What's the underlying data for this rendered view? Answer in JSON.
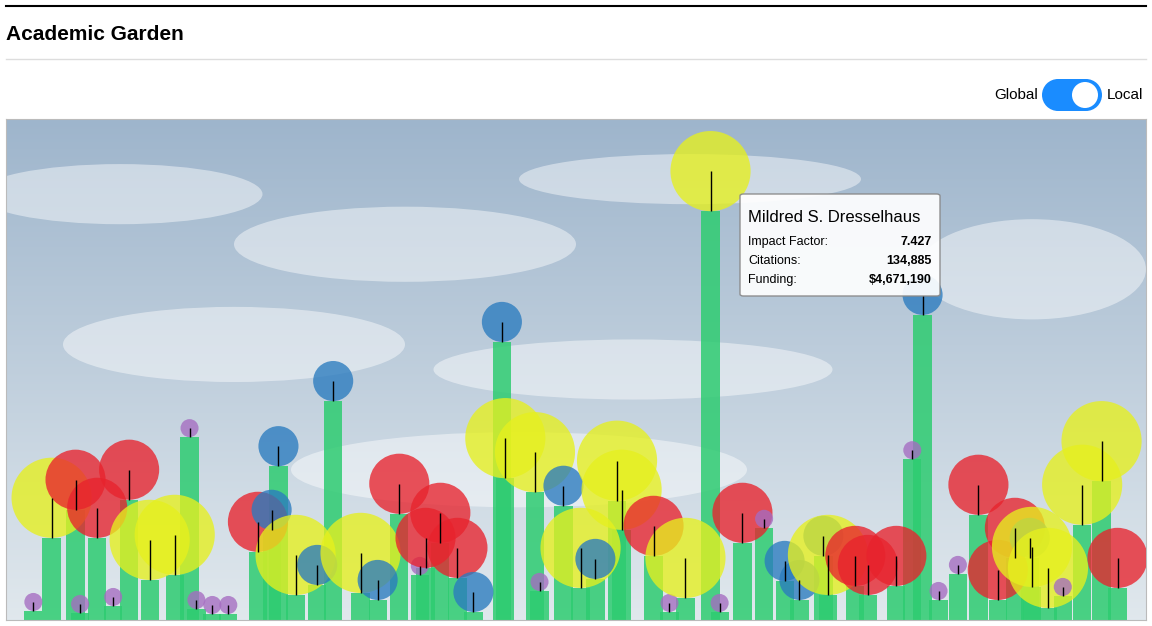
{
  "chart_data": {
    "type": "bar",
    "title": "Academic Garden",
    "x": [
      2.4,
      4.0,
      6.1,
      6.5,
      8.0,
      9.4,
      10.8,
      12.6,
      14.8,
      16.1,
      16.7,
      18.1,
      19.5,
      22.1,
      23.3,
      23.9,
      25.4,
      27.3,
      28.7,
      31.1,
      32.6,
      34.5,
      36.3,
      36.8,
      38.1,
      39.6,
      41.0,
      43.5,
      43.8,
      46.4,
      46.8,
      48.9,
      50.4,
      51.7,
      53.6,
      54.0,
      56.8,
      58.2,
      59.6,
      61.8,
      62.6,
      64.6,
      66.5,
      68.3,
      69.6,
      71.7,
      72.1,
      74.5,
      75.6,
      78.1,
      79.5,
      80.4,
      81.8,
      83.5,
      85.3,
      87.0,
      88.5,
      89.8,
      90.0,
      91.4,
      92.7,
      94.4,
      96.1,
      97.5
    ],
    "values": [
      1.8,
      16.4,
      22.0,
      1.4,
      16.4,
      2.8,
      24.0,
      8.0,
      9.0,
      36.5,
      2.2,
      1.2,
      1.2,
      13.6,
      18.0,
      30.7,
      5.0,
      7.0,
      43.7,
      5.4,
      4.0,
      21.2,
      9.0,
      10.4,
      15.4,
      8.4,
      1.6,
      55.5,
      28.3,
      25.5,
      5.8,
      22.8,
      6.4,
      8.2,
      23.8,
      18.0,
      12.8,
      1.6,
      4.4,
      81.6,
      1.6,
      15.4,
      18.4,
      7.8,
      4.0,
      12.8,
      5.0,
      6.8,
      5.0,
      6.8,
      32.1,
      60.9,
      4.0,
      9.2,
      21.0,
      4.0,
      12.4,
      12.4,
      6.6,
      2.4,
      4.8,
      19.0,
      27.7,
      6.4
    ],
    "sizes": [
      1.8,
      8,
      6,
      1.8,
      6,
      1.8,
      6,
      8,
      8,
      1.8,
      1.8,
      1.8,
      1.8,
      6,
      4,
      4,
      8,
      4,
      4,
      8,
      4,
      6,
      1.8,
      6,
      6,
      6,
      4,
      4,
      8,
      8,
      1.8,
      4,
      8,
      4,
      8,
      8,
      6,
      1.8,
      8,
      8,
      1.8,
      6,
      1.8,
      4,
      4,
      4,
      8,
      6,
      6,
      6,
      1.8,
      4,
      1.8,
      1.8,
      6,
      6,
      6,
      4,
      8,
      8,
      1.8,
      8,
      8,
      6
    ],
    "colors": [
      "#a56cc1",
      "#e6f01e",
      "#e8232d",
      "#a56cc1",
      "#e8232d",
      "#a56cc1",
      "#e8232d",
      "#e6f01e",
      "#e6f01e",
      "#a56cc1",
      "#a56cc1",
      "#a56cc1",
      "#a56cc1",
      "#e8232d",
      "#2a7bbf",
      "#2a7bbf",
      "#e6f01e",
      "#2a7bbf",
      "#2a7bbf",
      "#e6f01e",
      "#2a7bbf",
      "#e8232d",
      "#a56cc1",
      "#e8232d",
      "#e8232d",
      "#e8232d",
      "#2a7bbf",
      "#2a7bbf",
      "#e6f01e",
      "#e6f01e",
      "#a56cc1",
      "#2a7bbf",
      "#e6f01e",
      "#2a7bbf",
      "#e6f01e",
      "#e6f01e",
      "#e8232d",
      "#a56cc1",
      "#e6f01e",
      "#e6f01e",
      "#a56cc1",
      "#e8232d",
      "#a56cc1",
      "#2a7bbf",
      "#2a7bbf",
      "#2a7bbf",
      "#e6f01e",
      "#e8232d",
      "#e8232d",
      "#e8232d",
      "#a56cc1",
      "#2a7bbf",
      "#a56cc1",
      "#a56cc1",
      "#e8232d",
      "#e8232d",
      "#e8232d",
      "#2a7bbf",
      "#e6f01e",
      "#e6f01e",
      "#a56cc1",
      "#e6f01e",
      "#e6f01e",
      "#e8232d"
    ],
    "color": "#2ecc71",
    "xlim": [
      0,
      100
    ],
    "ylim": [
      0,
      100
    ],
    "xticks": [],
    "yticks": [],
    "tick_labels": false,
    "toggle": {
      "left": "Global",
      "right": "Local"
    },
    "tooltip": {
      "name": "Mildred S. Dresselhaus",
      "rows": [
        {
          "label": "Impact Factor:",
          "value": "7.427"
        },
        {
          "label": "Citations:",
          "value": "134,885"
        },
        {
          "label": "Funding:",
          "value": "$4,671,190"
        }
      ]
    }
  }
}
